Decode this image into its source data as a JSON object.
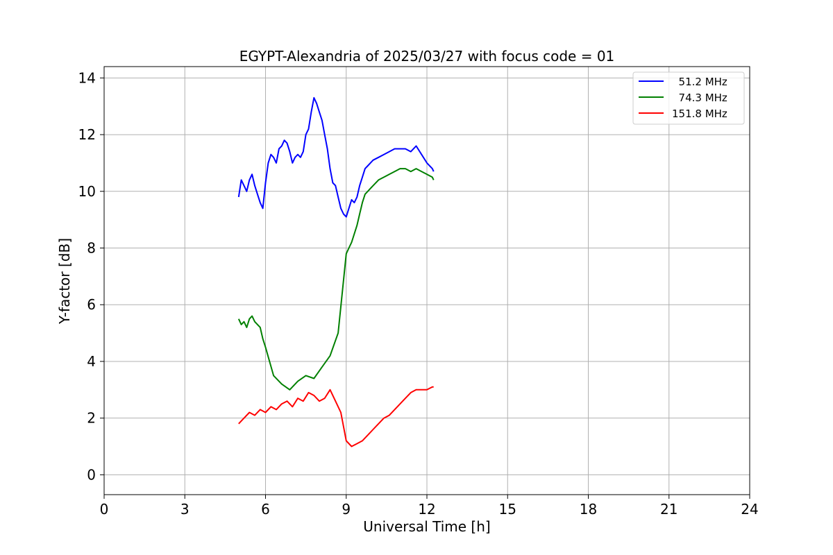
{
  "chart_data": {
    "type": "line",
    "title": "EGYPT-Alexandria of 2025/03/27 with focus code = 01",
    "xlabel": "Universal Time [h]",
    "ylabel": "Y-factor [dB]",
    "xlim": [
      0,
      24
    ],
    "ylim": [
      -0.7,
      14.4
    ],
    "xticks": [
      0,
      3,
      6,
      9,
      12,
      15,
      18,
      21,
      24
    ],
    "yticks": [
      0,
      2,
      4,
      6,
      8,
      10,
      12,
      14
    ],
    "grid": true,
    "legend_position": "top-right",
    "series": [
      {
        "name": "  51.2 MHz",
        "color": "#0000ff",
        "x": [
          5.0,
          5.1,
          5.2,
          5.3,
          5.4,
          5.5,
          5.6,
          5.7,
          5.8,
          5.9,
          6.0,
          6.1,
          6.2,
          6.3,
          6.4,
          6.5,
          6.6,
          6.7,
          6.8,
          6.9,
          7.0,
          7.1,
          7.2,
          7.3,
          7.4,
          7.5,
          7.6,
          7.7,
          7.8,
          7.9,
          8.0,
          8.1,
          8.2,
          8.3,
          8.4,
          8.5,
          8.6,
          8.7,
          8.8,
          8.9,
          9.0,
          9.1,
          9.2,
          9.3,
          9.4,
          9.5,
          9.6,
          9.7,
          9.8,
          9.9,
          10.0,
          10.2,
          10.4,
          10.6,
          10.8,
          11.0,
          11.2,
          11.4,
          11.6,
          11.8,
          12.0,
          12.2,
          12.25
        ],
        "values": [
          9.8,
          10.4,
          10.2,
          10.0,
          10.4,
          10.6,
          10.2,
          9.9,
          9.6,
          9.4,
          10.3,
          11.0,
          11.3,
          11.2,
          11.0,
          11.5,
          11.6,
          11.8,
          11.7,
          11.4,
          11.0,
          11.2,
          11.3,
          11.2,
          11.4,
          12.0,
          12.2,
          12.8,
          13.3,
          13.1,
          12.8,
          12.5,
          12.0,
          11.5,
          10.8,
          10.3,
          10.2,
          9.8,
          9.4,
          9.2,
          9.1,
          9.4,
          9.7,
          9.6,
          9.8,
          10.2,
          10.5,
          10.8,
          10.9,
          11.0,
          11.1,
          11.2,
          11.3,
          11.4,
          11.5,
          11.5,
          11.5,
          11.4,
          11.6,
          11.3,
          11.0,
          10.8,
          10.7
        ]
      },
      {
        "name": "  74.3 MHz",
        "color": "#008000",
        "x": [
          5.0,
          5.1,
          5.2,
          5.3,
          5.4,
          5.5,
          5.6,
          5.7,
          5.8,
          5.9,
          6.0,
          6.3,
          6.6,
          6.9,
          7.2,
          7.5,
          7.8,
          8.1,
          8.4,
          8.7,
          9.0,
          9.1,
          9.2,
          9.3,
          9.4,
          9.5,
          9.6,
          9.7,
          9.8,
          9.9,
          10.0,
          10.2,
          10.4,
          10.6,
          10.8,
          11.0,
          11.2,
          11.4,
          11.6,
          11.8,
          12.0,
          12.2,
          12.25
        ],
        "values": [
          5.5,
          5.3,
          5.4,
          5.2,
          5.5,
          5.6,
          5.4,
          5.3,
          5.2,
          4.8,
          4.5,
          3.5,
          3.2,
          3.0,
          3.3,
          3.5,
          3.4,
          3.8,
          4.2,
          5.0,
          7.8,
          8.0,
          8.2,
          8.5,
          8.8,
          9.2,
          9.6,
          9.9,
          10.0,
          10.1,
          10.2,
          10.4,
          10.5,
          10.6,
          10.7,
          10.8,
          10.8,
          10.7,
          10.8,
          10.7,
          10.6,
          10.5,
          10.4
        ]
      },
      {
        "name": "151.8 MHz",
        "color": "#ff0000",
        "x": [
          5.0,
          5.2,
          5.4,
          5.6,
          5.8,
          6.0,
          6.2,
          6.4,
          6.6,
          6.8,
          7.0,
          7.2,
          7.4,
          7.6,
          7.8,
          8.0,
          8.2,
          8.4,
          8.6,
          8.8,
          9.0,
          9.2,
          9.4,
          9.6,
          9.8,
          10.0,
          10.2,
          10.4,
          10.6,
          10.8,
          11.0,
          11.2,
          11.4,
          11.6,
          11.8,
          12.0,
          12.2,
          12.25
        ],
        "values": [
          1.8,
          2.0,
          2.2,
          2.1,
          2.3,
          2.2,
          2.4,
          2.3,
          2.5,
          2.6,
          2.4,
          2.7,
          2.6,
          2.9,
          2.8,
          2.6,
          2.7,
          3.0,
          2.6,
          2.2,
          1.2,
          1.0,
          1.1,
          1.2,
          1.4,
          1.6,
          1.8,
          2.0,
          2.1,
          2.3,
          2.5,
          2.7,
          2.9,
          3.0,
          3.0,
          3.0,
          3.1,
          3.1
        ]
      }
    ]
  }
}
